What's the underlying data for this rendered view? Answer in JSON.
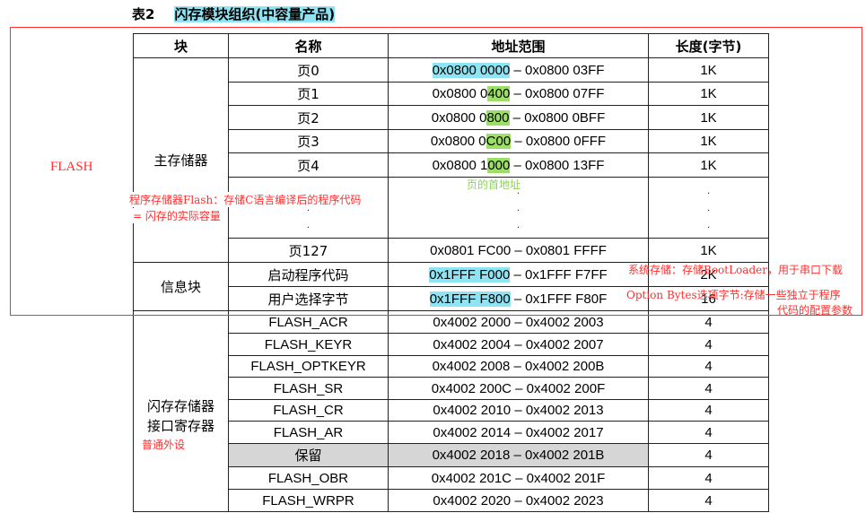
{
  "title": {
    "number": "表2",
    "text": "闪存模块组织(中容量产品)"
  },
  "headers": {
    "block": "块",
    "name": "名称",
    "addr": "地址范围",
    "len": "长度(字节)"
  },
  "blocks": {
    "main": "主存储器",
    "info": "信息块",
    "reg": "闪存存储器\n接口寄存器"
  },
  "pages": [
    {
      "name": "页0",
      "a1": "0x0800 0000",
      "sep": " – ",
      "a2": "0x0800 03FF",
      "len": "1K"
    },
    {
      "name": "页1",
      "a1_pre": "0x0800 0",
      "a1_hl": "400",
      "sep": " – ",
      "a2": "0x0800 07FF",
      "len": "1K"
    },
    {
      "name": "页2",
      "a1_pre": "0x0800 0",
      "a1_hl": "800",
      "sep": " – ",
      "a2": "0x0800 0BFF",
      "len": "1K"
    },
    {
      "name": "页3",
      "a1_pre": "0x0800 0",
      "a1_hl": "C00",
      "sep": " – ",
      "a2": "0x0800 0FFF",
      "len": "1K"
    },
    {
      "name": "页4",
      "a1_pre": "0x0800 1",
      "a1_hl": "000",
      "sep": " – ",
      "a2": "0x0800 13FF",
      "len": "1K"
    },
    {
      "name": "页127",
      "a1": "0x0801 FC00",
      "sep": " – ",
      "a2": "0x0801 FFFF",
      "len": "1K"
    }
  ],
  "dots": ".",
  "info": [
    {
      "name": "启动程序代码",
      "a1": "0x1FFF F000",
      "sep": " – ",
      "a2": "0x1FFF F7FF",
      "len": "2K"
    },
    {
      "name": "用户选择字节",
      "a1": "0x1FFF F800",
      "sep": " – ",
      "a2": "0x1FFF F80F",
      "len": "16"
    }
  ],
  "regs": [
    {
      "name": "FLASH_ACR",
      "addr": "0x4002 2000 – 0x4002 2003",
      "len": "4"
    },
    {
      "name": "FLASH_KEYR",
      "addr": "0x4002 2004 – 0x4002 2007",
      "len": "4"
    },
    {
      "name": "FLASH_OPTKEYR",
      "addr": "0x4002 2008 – 0x4002 200B",
      "len": "4"
    },
    {
      "name": "FLASH_SR",
      "addr": "0x4002 200C – 0x4002 200F",
      "len": "4"
    },
    {
      "name": "FLASH_CR",
      "addr": "0x4002 2010 – 0x4002 2013",
      "len": "4"
    },
    {
      "name": "FLASH_AR",
      "addr": "0x4002 2014 – 0x4002 2017",
      "len": "4"
    },
    {
      "name": "保留",
      "addr": "0x4002 2018 – 0x4002 201B",
      "len": "4"
    },
    {
      "name": "FLASH_OBR",
      "addr": "0x4002 201C – 0x4002 201F",
      "len": "4"
    },
    {
      "name": "FLASH_WRPR",
      "addr": "0x4002 2020 – 0x4002 2023",
      "len": "4"
    }
  ],
  "annotations": {
    "flash": "FLASH",
    "program_line1": "程序存储器Flash：存储C语言编译后的程序代码",
    "program_line2": "= 闪存的实际容量",
    "page_head": "页的首地址",
    "system": "系统存储：存储BootLoader，用于串口下载",
    "option_line1": "Option Bytes选项字节:存储一些独立于程序",
    "option_line2": "代码的配置参数",
    "peripheral": "普通外设"
  },
  "colors": {
    "annotation": "#ff2f2f",
    "highlight_cyan": "#8fe4f4",
    "highlight_green": "#9be064",
    "reserved_gray": "#d6d6d6"
  }
}
